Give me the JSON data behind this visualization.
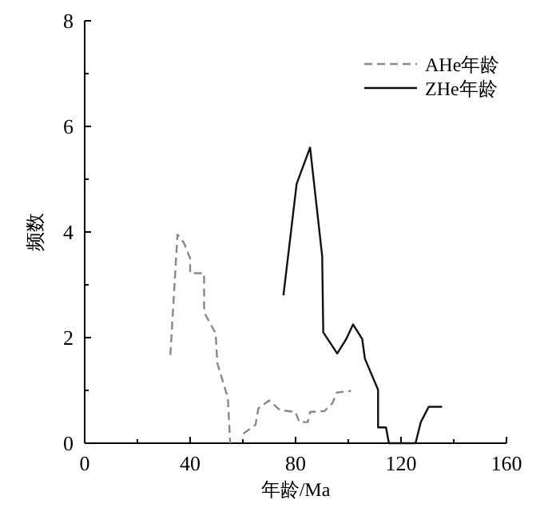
{
  "chart_data": {
    "type": "line",
    "xlabel": "年龄/Ma",
    "ylabel": "频数",
    "xlim": [
      0,
      160
    ],
    "ylim": [
      0,
      8
    ],
    "xticks": [
      0,
      40,
      80,
      120,
      160
    ],
    "yticks": [
      0,
      2,
      4,
      6,
      8
    ],
    "legend": "top right",
    "grid": false,
    "marker": "none",
    "series": [
      {
        "name": "AHe年龄",
        "color": "#888888",
        "line_style": "dashed",
        "x": [
          32.5,
          35.2,
          37.6,
          40,
          40,
          45.3,
          45.3,
          49.7,
          50.3,
          54.3,
          55.2,
          null,
          60.2,
          64.8,
          65.9,
          70,
          74,
          80,
          81.4,
          84.6,
          85.5,
          91,
          94,
          95.6,
          101
        ],
        "values": [
          1.67,
          3.95,
          3.8,
          3.5,
          3.22,
          3.22,
          2.48,
          2.08,
          1.52,
          0.86,
          0,
          null,
          0.18,
          0.35,
          0.66,
          0.81,
          0.63,
          0.59,
          0.4,
          0.4,
          0.59,
          0.61,
          0.76,
          0.96,
          0.99
        ]
      },
      {
        "name": "ZHe年龄",
        "color": "#111111",
        "line_style": "solid",
        "x": [
          75.4,
          80.4,
          85.5,
          90.1,
          90.5,
          95.8,
          99.2,
          101.8,
          105.3,
          106.3,
          111.3,
          111.3,
          114.3,
          115.4,
          125.5,
          127.5,
          130.5,
          135.6
        ],
        "values": [
          2.8,
          4.91,
          5.6,
          3.54,
          2.1,
          1.7,
          1.97,
          2.25,
          1.97,
          1.6,
          1.01,
          0.3,
          0.3,
          0,
          0,
          0.4,
          0.69,
          0.69
        ]
      }
    ]
  }
}
